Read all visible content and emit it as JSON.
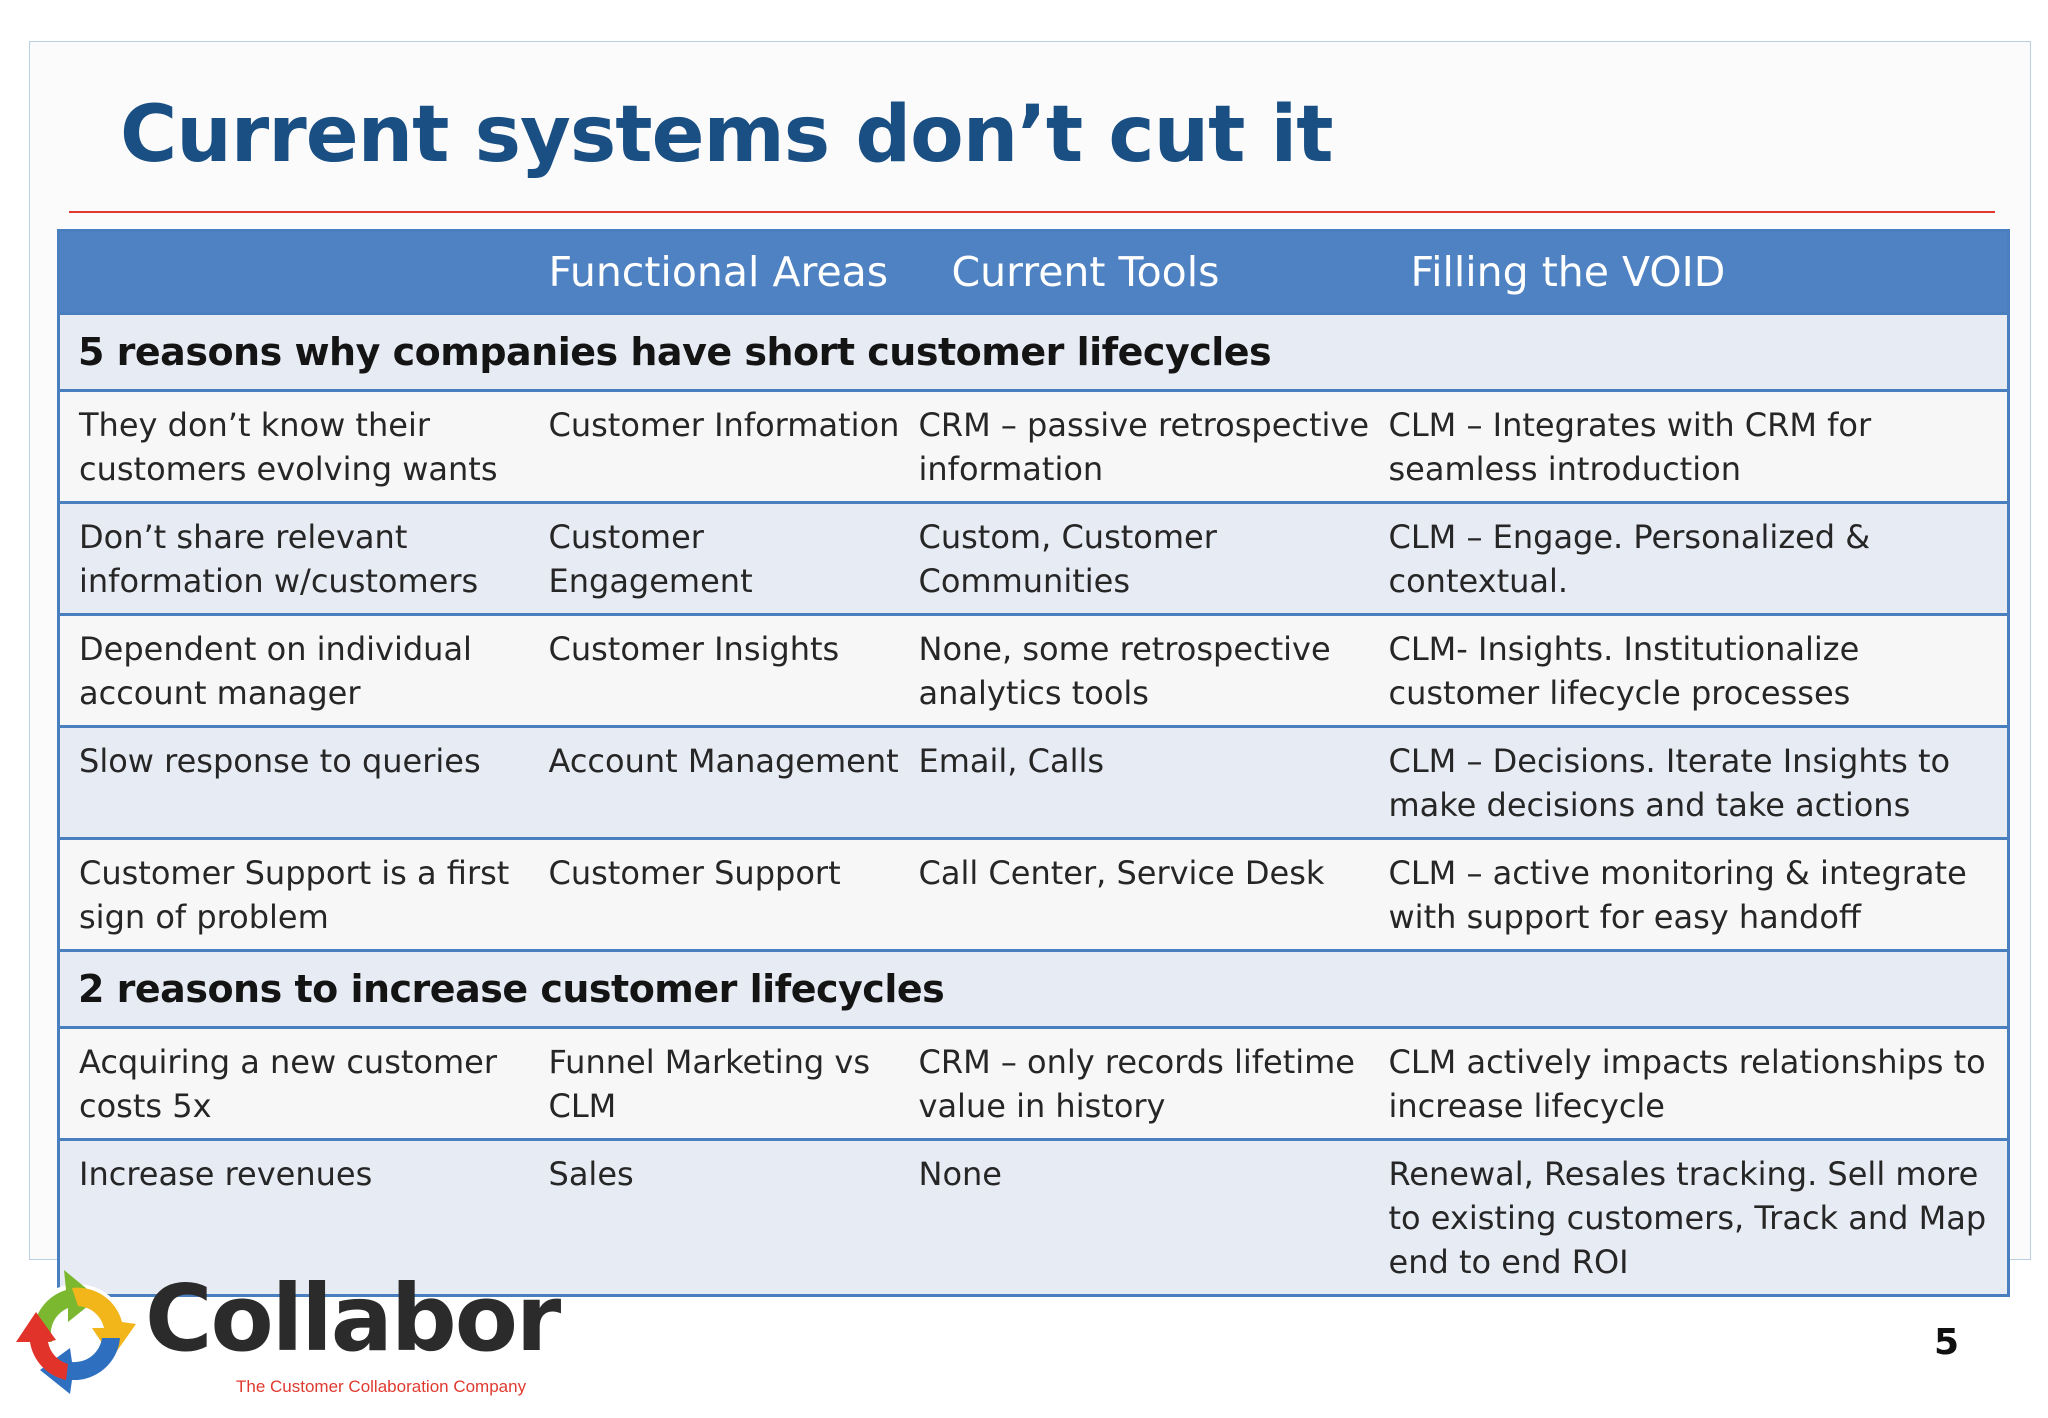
{
  "slide": {
    "title": "Current systems don’t cut it"
  },
  "table": {
    "headers": [
      "",
      "Functional Areas",
      "Current Tools",
      "Filling the VOID"
    ],
    "sections": [
      {
        "title": "5 reasons why companies have short customer lifecycles",
        "rows": [
          [
            "They don’t know their customers evolving wants",
            "Customer Information",
            "CRM – passive retrospective information",
            "CLM – Integrates with CRM for seamless introduction"
          ],
          [
            "Don’t share relevant information w/customers",
            "Customer Engagement",
            "Custom, Customer Communities",
            "CLM – Engage. Personalized & contextual."
          ],
          [
            "Dependent on individual account manager",
            "Customer Insights",
            "None, some retrospective analytics tools",
            "CLM- Insights. Institutionalize customer lifecycle processes"
          ],
          [
            "Slow response to queries",
            "Account Management",
            "Email, Calls",
            "CLM – Decisions. Iterate Insights to make decisions and take actions"
          ],
          [
            "Customer Support is a first sign of problem",
            "Customer Support",
            "Call Center, Service Desk",
            "CLM – active monitoring & integrate with support for easy handoff"
          ]
        ]
      },
      {
        "title": "2 reasons to increase customer lifecycles",
        "rows": [
          [
            "Acquiring a new customer costs 5x",
            "Funnel Marketing vs CLM",
            "CRM – only records lifetime value in history",
            "CLM actively impacts relationships to increase lifecycle"
          ],
          [
            "Increase revenues",
            "Sales",
            "None",
            "Renewal, Resales tracking. Sell more to existing customers, Track and Map end to end ROI"
          ]
        ]
      }
    ]
  },
  "logo": {
    "name": "Collabor",
    "tagline": "The Customer Collaboration Company",
    "icon": "collabor-swirl-icon"
  },
  "page_number": "5",
  "colors": {
    "title": "#1a4f84",
    "rule": "#e0392f",
    "header_bg": "#4f82c2",
    "border": "#4a7fbf",
    "shade_row": "#e7ebf3"
  }
}
